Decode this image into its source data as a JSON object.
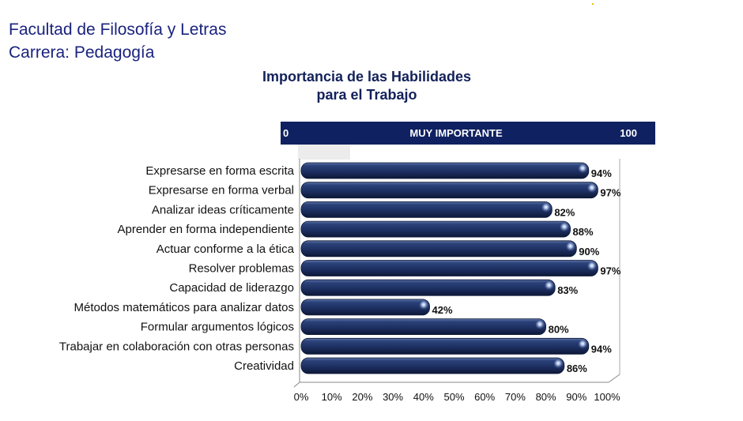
{
  "header": {
    "faculty": "Facultad de Filosofía y Letras",
    "career": "Carrera: Pedagogía"
  },
  "chart_data": {
    "type": "bar",
    "orientation": "horizontal",
    "title_lines": [
      "Importancia de las Habilidades",
      "para el Trabajo"
    ],
    "scale_bar": {
      "left_label": "0",
      "center_label": "MUY IMPORTANTE",
      "right_label": "100"
    },
    "categories": [
      "Expresarse en forma escrita",
      "Expresarse en forma verbal",
      "Analizar ideas críticamente",
      "Aprender en forma independiente",
      "Actuar conforme a la ética",
      "Resolver problemas",
      "Capacidad de liderazgo",
      "Métodos matemáticos para analizar datos",
      "Formular argumentos lógicos",
      "Trabajar en colaboración con otras personas",
      "Creatividad"
    ],
    "values": [
      94,
      97,
      82,
      88,
      90,
      97,
      83,
      42,
      80,
      94,
      86
    ],
    "value_labels": [
      "94%",
      "97%",
      "82%",
      "88%",
      "90%",
      "97%",
      "83%",
      "42%",
      "80%",
      "94%",
      "86%"
    ],
    "x_ticks": [
      "0%",
      "10%",
      "20%",
      "30%",
      "40%",
      "50%",
      "60%",
      "70%",
      "80%",
      "90%",
      "100%"
    ],
    "xlim": [
      0,
      100
    ],
    "bar_color": "#1f3366",
    "scale_bar_color": "#0f2160",
    "grid": false
  }
}
